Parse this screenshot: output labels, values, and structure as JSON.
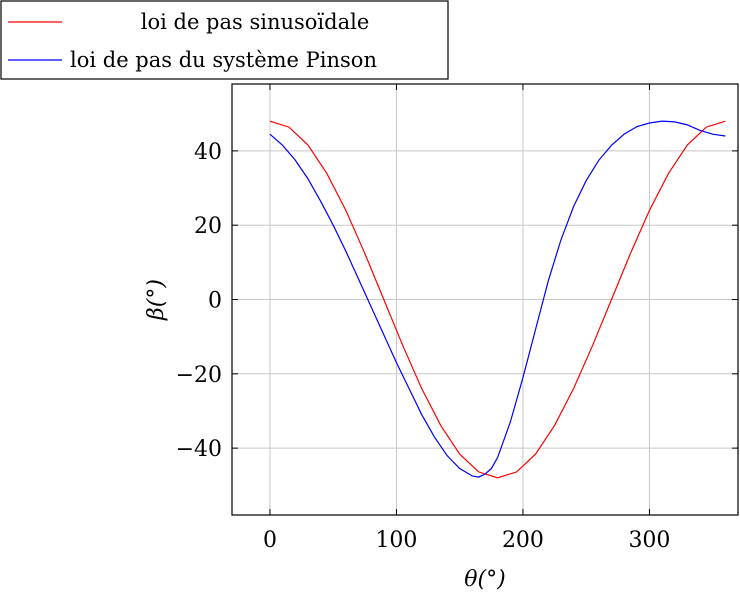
{
  "chart_data": {
    "type": "line",
    "title": "",
    "xlabel": "θ(°)",
    "ylabel": "β(°)",
    "xlim": [
      -30,
      370
    ],
    "ylim": [
      -58,
      58
    ],
    "xticks": [
      0,
      100,
      200,
      300
    ],
    "yticks": [
      -40,
      -20,
      0,
      20,
      40
    ],
    "xtick_labels": [
      "0",
      "100",
      "200",
      "300"
    ],
    "ytick_labels": [
      "−40",
      "−20",
      "0",
      "20",
      "40"
    ],
    "grid": true,
    "legend": "top-left",
    "series": [
      {
        "name": "loi de pas sinusoïdale",
        "color": "#ff0000",
        "x": [
          0,
          15,
          30,
          45,
          60,
          75,
          90,
          105,
          120,
          135,
          150,
          165,
          180,
          195,
          210,
          225,
          240,
          255,
          270,
          285,
          300,
          315,
          330,
          345,
          360
        ],
        "y": [
          48.0,
          46.4,
          41.6,
          33.9,
          24.0,
          12.4,
          0.0,
          -12.4,
          -24.0,
          -33.9,
          -41.6,
          -46.4,
          -48.0,
          -46.4,
          -41.6,
          -33.9,
          -24.0,
          -12.4,
          0.0,
          12.4,
          24.0,
          33.9,
          41.6,
          46.4,
          48.0
        ]
      },
      {
        "name": "loi de pas du système Pinson",
        "color": "#0000ff",
        "x": [
          0,
          10,
          20,
          30,
          40,
          50,
          60,
          70,
          80,
          90,
          100,
          110,
          120,
          130,
          140,
          150,
          160,
          165,
          170,
          175,
          180,
          190,
          200,
          210,
          220,
          230,
          240,
          250,
          260,
          270,
          280,
          290,
          300,
          310,
          320,
          330,
          340,
          350,
          360
        ],
        "y": [
          44.5,
          41.5,
          37.5,
          32.5,
          26.5,
          20.0,
          13.0,
          5.5,
          -2.0,
          -9.5,
          -17.0,
          -24.0,
          -31.0,
          -37.0,
          -42.0,
          -45.5,
          -47.5,
          -47.8,
          -47.0,
          -45.5,
          -42.5,
          -33.0,
          -21.0,
          -8.0,
          5.0,
          16.0,
          25.0,
          32.0,
          37.5,
          41.5,
          44.5,
          46.5,
          47.5,
          48.0,
          47.8,
          47.0,
          45.5,
          44.5,
          44.0
        ]
      }
    ]
  }
}
